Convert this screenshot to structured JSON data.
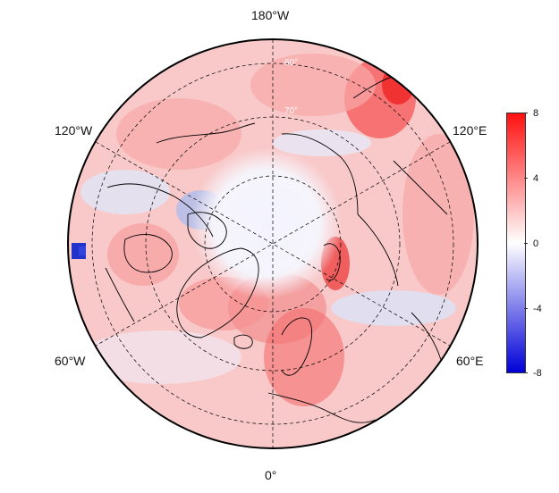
{
  "map": {
    "projection": "north-polar-stereographic",
    "longitude_labels": {
      "top": "180°W",
      "upper_left": "120°W",
      "upper_right": "120°E",
      "lower_left": "60°W",
      "lower_right": "60°E",
      "bottom": "0°"
    },
    "latitude_labels": [
      "60°",
      "70°"
    ],
    "graticule": "dashed"
  },
  "colorbar": {
    "ticks": [
      "8",
      "4",
      "0",
      "-4",
      "-8"
    ],
    "range": [
      -8,
      8
    ],
    "colors": {
      "min": "#0000d8",
      "mid": "#ffffff",
      "max": "#ff1010"
    }
  }
}
